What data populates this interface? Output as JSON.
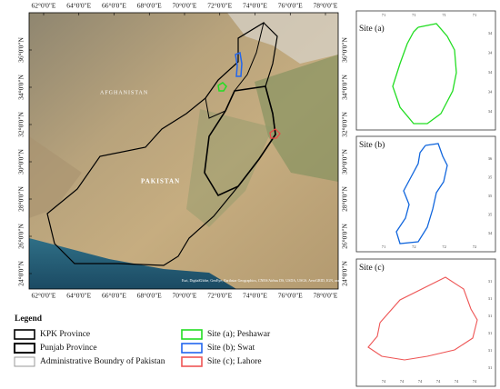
{
  "map": {
    "lon_labels": [
      "62°0'0\"E",
      "64°0'0\"E",
      "66°0'0\"E",
      "68°0'0\"E",
      "70°0'0\"E",
      "72°0'0\"E",
      "74°0'0\"E",
      "76°0'0\"E",
      "78°0'0\"E"
    ],
    "lat_labels": [
      "36°0'0\"N",
      "34°0'0\"N",
      "32°0'0\"N",
      "30°0'0\"N",
      "28°0'0\"N",
      "26°0'0\"N",
      "24°0'0\"N"
    ],
    "labels": [
      "AFGHANISTAN",
      "PAKISTAN"
    ],
    "attribution": "Esri, DigitalGlobe, GeoEye, Earthstar Geographics, CNES/Airbus DS, USDA, USGS, AeroGRID, IGN, and the GIS User Community"
  },
  "insets": [
    {
      "title": "Site (a)",
      "x_ticks": [
        "71",
        "71",
        "71",
        "71"
      ],
      "y_ticks": [
        "34",
        "34",
        "34",
        "34",
        "34"
      ]
    },
    {
      "title": "Site (b)",
      "x_ticks": [
        "71",
        "72",
        "72",
        "72"
      ],
      "y_ticks": [
        "36",
        "35",
        "35",
        "35",
        "34"
      ]
    },
    {
      "title": "Site (c)",
      "x_ticks": [
        "74",
        "74",
        "74",
        "74",
        "74",
        "74"
      ],
      "y_ticks": [
        "31",
        "31",
        "31",
        "31",
        "31",
        "31"
      ]
    }
  ],
  "legend": {
    "title": "Legend",
    "items": [
      {
        "label": "KPK Province",
        "color": "#000000"
      },
      {
        "label": "Punjab Province",
        "color": "#000000"
      },
      {
        "label": "Administrative Boundry of Pakistan",
        "color": "#999999"
      },
      {
        "label": "Site (a); Peshawar",
        "color": "#22dd22"
      },
      {
        "label": "Site (b); Swat",
        "color": "#2266ee"
      },
      {
        "label": "Site (c); Lahore",
        "color": "#ee5555"
      }
    ]
  }
}
